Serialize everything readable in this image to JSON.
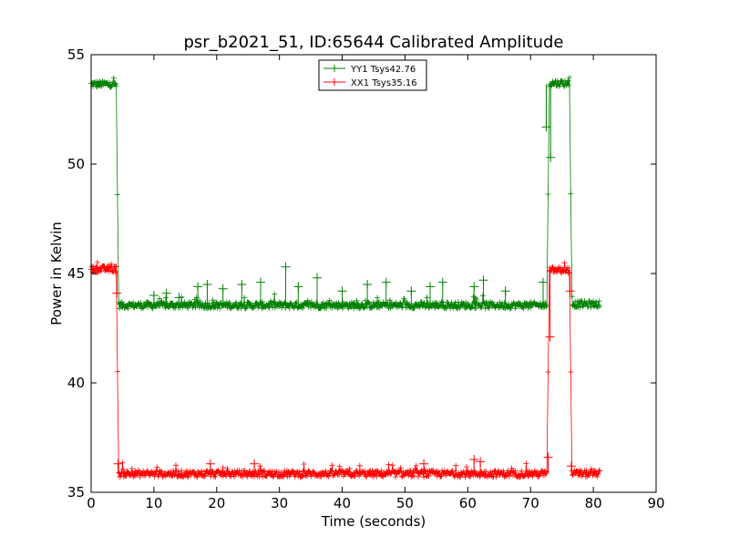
{
  "chart_data": {
    "type": "line",
    "title": "psr_b2021_51, ID:65644 Calibrated Amplitude",
    "xlabel": "Time (seconds)",
    "ylabel": "Power in Kelvin",
    "xlim": [
      0,
      90
    ],
    "ylim": [
      35,
      55
    ],
    "xticks": [
      "0",
      "10",
      "20",
      "30",
      "40",
      "50",
      "60",
      "70",
      "80",
      "90"
    ],
    "yticks": [
      "35",
      "40",
      "45",
      "50",
      "55"
    ],
    "grid": false,
    "legend_position": "top-center",
    "marker": "+",
    "series": [
      {
        "name": "YY1 Tsys42.76",
        "color": "#008000",
        "segments": [
          {
            "x_start": 0.0,
            "x_end": 4.0,
            "level": 53.65
          },
          {
            "x_start": 4.4,
            "x_end": 72.6,
            "level": 43.55
          },
          {
            "x_start": 73.0,
            "x_end": 76.2,
            "level": 53.7
          },
          {
            "x_start": 76.6,
            "x_end": 81.0,
            "level": 43.6
          }
        ],
        "spikes": [
          {
            "x": 10.0,
            "y": 44.0
          },
          {
            "x": 12.0,
            "y": 44.1
          },
          {
            "x": 14.0,
            "y": 43.9
          },
          {
            "x": 17.0,
            "y": 44.4
          },
          {
            "x": 18.5,
            "y": 44.5
          },
          {
            "x": 21.0,
            "y": 44.3
          },
          {
            "x": 24.0,
            "y": 44.5
          },
          {
            "x": 27.0,
            "y": 44.6
          },
          {
            "x": 31.0,
            "y": 45.3
          },
          {
            "x": 33.0,
            "y": 44.4
          },
          {
            "x": 36.0,
            "y": 44.8
          },
          {
            "x": 40.0,
            "y": 44.2
          },
          {
            "x": 44.0,
            "y": 44.5
          },
          {
            "x": 47.0,
            "y": 44.6
          },
          {
            "x": 51.0,
            "y": 44.2
          },
          {
            "x": 54.0,
            "y": 44.4
          },
          {
            "x": 56.0,
            "y": 44.6
          },
          {
            "x": 61.0,
            "y": 44.4
          },
          {
            "x": 62.5,
            "y": 44.7
          },
          {
            "x": 66.0,
            "y": 44.2
          },
          {
            "x": 72.0,
            "y": 44.6
          },
          {
            "x": 72.5,
            "y": 51.7
          },
          {
            "x": 73.2,
            "y": 50.3
          }
        ]
      },
      {
        "name": "XX1 Tsys35.16",
        "color": "#ff0000",
        "segments": [
          {
            "x_start": 0.0,
            "x_end": 4.0,
            "level": 45.2
          },
          {
            "x_start": 4.4,
            "x_end": 72.6,
            "level": 35.85
          },
          {
            "x_start": 73.0,
            "x_end": 76.2,
            "level": 45.15
          },
          {
            "x_start": 76.6,
            "x_end": 81.0,
            "level": 35.85
          }
        ],
        "spikes": [
          {
            "x": 4.1,
            "y": 44.1
          },
          {
            "x": 4.3,
            "y": 36.3
          },
          {
            "x": 19.0,
            "y": 36.3
          },
          {
            "x": 26.0,
            "y": 36.3
          },
          {
            "x": 53.0,
            "y": 36.3
          },
          {
            "x": 61.0,
            "y": 36.5
          },
          {
            "x": 62.0,
            "y": 36.4
          },
          {
            "x": 72.8,
            "y": 36.6
          },
          {
            "x": 73.1,
            "y": 42.1
          },
          {
            "x": 76.3,
            "y": 44.2
          },
          {
            "x": 76.5,
            "y": 36.2
          }
        ]
      }
    ]
  }
}
